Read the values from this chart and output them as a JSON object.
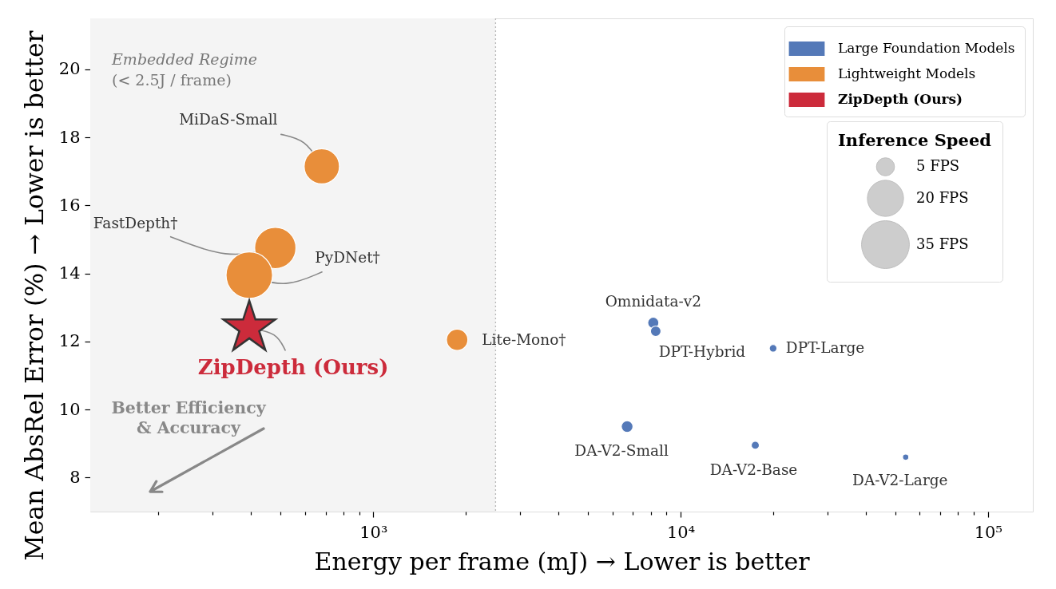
{
  "chart_data": {
    "type": "bubble",
    "xlabel": "Energy per frame (mJ) → Lower is better",
    "ylabel": "Mean AbsRel Error (%) → Lower is better",
    "legend_title": "Inference Speed",
    "xlim": [
      120,
      140000
    ],
    "xticks": [
      {
        "value": 200,
        "label": null
      },
      {
        "value": 300,
        "label": null
      },
      {
        "value": 400,
        "label": null
      },
      {
        "value": 500,
        "label": null
      },
      {
        "value": 600,
        "label": null
      },
      {
        "value": 700,
        "label": null
      },
      {
        "value": 800,
        "label": null
      },
      {
        "value": 900,
        "label": null
      },
      {
        "value": 1000,
        "label": "10³"
      },
      {
        "value": 2000,
        "label": null
      },
      {
        "value": 3000,
        "label": null
      },
      {
        "value": 4000,
        "label": null
      },
      {
        "value": 5000,
        "label": null
      },
      {
        "value": 6000,
        "label": null
      },
      {
        "value": 7000,
        "label": null
      },
      {
        "value": 8000,
        "label": null
      },
      {
        "value": 9000,
        "label": null
      },
      {
        "value": 10000,
        "label": "10⁴"
      },
      {
        "value": 20000,
        "label": null
      },
      {
        "value": 30000,
        "label": null
      },
      {
        "value": 40000,
        "label": null
      },
      {
        "value": 50000,
        "label": null
      },
      {
        "value": 60000,
        "label": null
      },
      {
        "value": 70000,
        "label": null
      },
      {
        "value": 80000,
        "label": null
      },
      {
        "value": 90000,
        "label": null
      },
      {
        "value": 100000,
        "label": "10⁵"
      }
    ],
    "ylim": [
      7,
      21.5
    ],
    "yticks": [
      8,
      10,
      12,
      14,
      16,
      18,
      20
    ],
    "log": "x",
    "legend": "top right",
    "size_legend": [
      {
        "value": 5,
        "label": "5 FPS"
      },
      {
        "value": 20,
        "label": "20 FPS"
      },
      {
        "value": 35,
        "label": "35 FPS"
      }
    ],
    "series": [
      {
        "name": "Large Foundation Models",
        "marker": "circle",
        "color": "#5479b8",
        "x": [
          8150,
          8300,
          20000,
          6700,
          17500,
          54000
        ],
        "values": [
          12.55,
          12.3,
          11.8,
          9.5,
          8.95,
          8.6
        ],
        "sizes": [
          1.9,
          1.7,
          0.9,
          2.1,
          1.0,
          0.6
        ]
      },
      {
        "name": "Lightweight Models",
        "marker": "circle",
        "color": "#e88e3a",
        "x": [
          680,
          480,
          395,
          1875
        ],
        "values": [
          17.15,
          14.75,
          13.95,
          12.05
        ],
        "sizes": [
          19,
          26,
          33,
          7
        ]
      },
      {
        "name": "ZipDepth (Ours)",
        "type": "scatter",
        "marker": "star",
        "color": "#cc2b3b",
        "x": [
          395
        ],
        "values": [
          12.4
        ]
      }
    ],
    "bands": [
      {
        "axis": "x",
        "from": 120,
        "to": 2500,
        "label": "Embedded Regime\n(< 2.5J / frame)",
        "color": "#f4f4f4"
      }
    ],
    "ref_lines": [
      {
        "axis": "x",
        "value": 2500,
        "line_style": "dotted",
        "color": "#b8b8b8"
      }
    ],
    "annotations": [
      {
        "text": "MiDaS-Small",
        "x": 680,
        "y": 17.15
      },
      {
        "text": "FastDepth†",
        "x": 480,
        "y": 14.75
      },
      {
        "text": "PyDNet†",
        "x": 395,
        "y": 13.95
      },
      {
        "text": "ZipDepth (Ours)",
        "x": 395,
        "y": 12.4
      },
      {
        "text": "Lite-Mono†",
        "x": 1875,
        "y": 12.05
      },
      {
        "text": "Omnidata-v2",
        "x": 8150,
        "y": 12.55
      },
      {
        "text": "DPT-Hybrid",
        "x": 8300,
        "y": 12.3
      },
      {
        "text": "DPT-Large",
        "x": 20000,
        "y": 11.8
      },
      {
        "text": "DA-V2-Small",
        "x": 6700,
        "y": 9.5
      },
      {
        "text": "DA-V2-Base",
        "x": 17500,
        "y": 8.95
      },
      {
        "text": "DA-V2-Large",
        "x": 54000,
        "y": 8.6
      },
      "Better Efficiency\n& Accuracy"
    ]
  }
}
